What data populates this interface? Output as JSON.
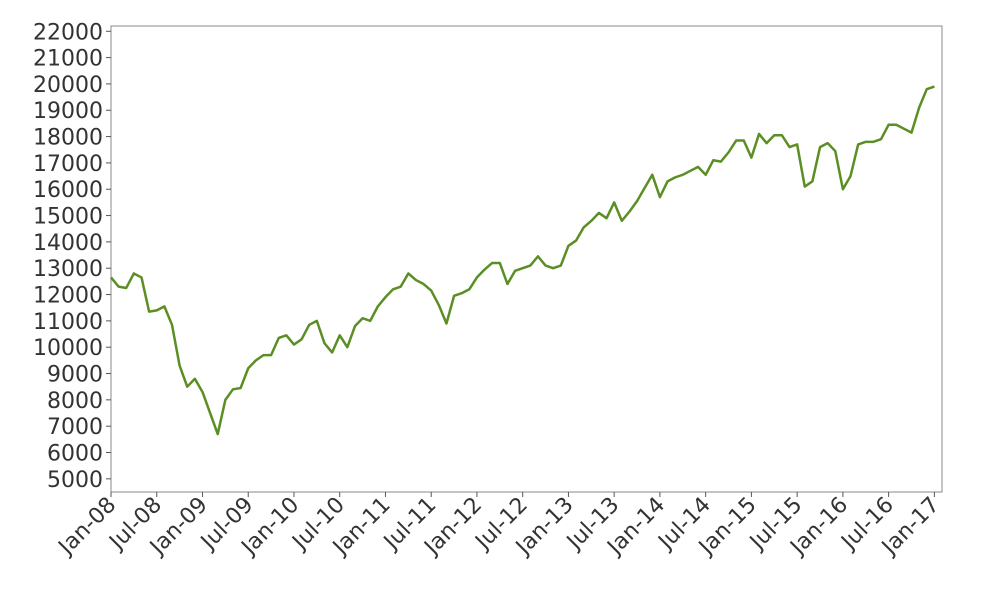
{
  "chart_data": {
    "type": "line",
    "color": "#5b8e23",
    "x": [
      "2008-01",
      "2008-02",
      "2008-03",
      "2008-04",
      "2008-05",
      "2008-06",
      "2008-07",
      "2008-08",
      "2008-09",
      "2008-10",
      "2008-11",
      "2008-12",
      "2009-01",
      "2009-02",
      "2009-03",
      "2009-04",
      "2009-05",
      "2009-06",
      "2009-07",
      "2009-08",
      "2009-09",
      "2009-10",
      "2009-11",
      "2009-12",
      "2010-01",
      "2010-02",
      "2010-03",
      "2010-04",
      "2010-05",
      "2010-06",
      "2010-07",
      "2010-08",
      "2010-09",
      "2010-10",
      "2010-11",
      "2010-12",
      "2011-01",
      "2011-02",
      "2011-03",
      "2011-04",
      "2011-05",
      "2011-06",
      "2011-07",
      "2011-08",
      "2011-09",
      "2011-10",
      "2011-11",
      "2011-12",
      "2012-01",
      "2012-02",
      "2012-03",
      "2012-04",
      "2012-05",
      "2012-06",
      "2012-07",
      "2012-08",
      "2012-09",
      "2012-10",
      "2012-11",
      "2012-12",
      "2013-01",
      "2013-02",
      "2013-03",
      "2013-04",
      "2013-05",
      "2013-06",
      "2013-07",
      "2013-08",
      "2013-09",
      "2013-10",
      "2013-11",
      "2013-12",
      "2014-01",
      "2014-02",
      "2014-03",
      "2014-04",
      "2014-05",
      "2014-06",
      "2014-07",
      "2014-08",
      "2014-09",
      "2014-10",
      "2014-11",
      "2014-12",
      "2015-01",
      "2015-02",
      "2015-03",
      "2015-04",
      "2015-05",
      "2015-06",
      "2015-07",
      "2015-08",
      "2015-09",
      "2015-10",
      "2015-11",
      "2015-12",
      "2016-01",
      "2016-02",
      "2016-03",
      "2016-04",
      "2016-05",
      "2016-06",
      "2016-07",
      "2016-08",
      "2016-09",
      "2016-10",
      "2016-11",
      "2016-12",
      "2017-01"
    ],
    "values": [
      12650,
      12300,
      12250,
      12800,
      12650,
      11350,
      11400,
      11550,
      10850,
      9300,
      8500,
      8800,
      8300,
      7500,
      6700,
      8000,
      8400,
      8450,
      9200,
      9500,
      9700,
      9700,
      10350,
      10450,
      10100,
      10300,
      10850,
      11000,
      10150,
      9800,
      10450,
      10000,
      10800,
      11100,
      11000,
      11550,
      11900,
      12200,
      12300,
      12800,
      12550,
      12400,
      12150,
      11600,
      10900,
      11950,
      12050,
      12200,
      12650,
      12950,
      13200,
      13200,
      12400,
      12900,
      13000,
      13100,
      13450,
      13100,
      13000,
      13100,
      13850,
      14050,
      14550,
      14800,
      15100,
      14900,
      15500,
      14800,
      15150,
      15550,
      16050,
      16550,
      15700,
      16300,
      16450,
      16550,
      16700,
      16850,
      16550,
      17100,
      17050,
      17400,
      17850,
      17850,
      17200,
      18100,
      17750,
      18050,
      18050,
      17600,
      17700,
      16100,
      16300,
      17600,
      17750,
      17450,
      16000,
      16500,
      17700,
      17800,
      17800,
      17900,
      18450,
      18450,
      18300,
      18150,
      19100,
      19800,
      19900
    ],
    "xlim": [
      "2008-01",
      "2017-02"
    ],
    "xticks": [
      {
        "value": "2008-01",
        "label": "Jan-08"
      },
      {
        "value": "2008-07",
        "label": "Jul-08"
      },
      {
        "value": "2009-01",
        "label": "Jan-09"
      },
      {
        "value": "2009-07",
        "label": "Jul-09"
      },
      {
        "value": "2010-01",
        "label": "Jan-10"
      },
      {
        "value": "2010-07",
        "label": "Jul-10"
      },
      {
        "value": "2011-01",
        "label": "Jan-11"
      },
      {
        "value": "2011-07",
        "label": "Jul-11"
      },
      {
        "value": "2012-01",
        "label": "Jan-12"
      },
      {
        "value": "2012-07",
        "label": "Jul-12"
      },
      {
        "value": "2013-01",
        "label": "Jan-13"
      },
      {
        "value": "2013-07",
        "label": "Jul-13"
      },
      {
        "value": "2014-01",
        "label": "Jan-14"
      },
      {
        "value": "2014-07",
        "label": "Jul-14"
      },
      {
        "value": "2015-01",
        "label": "Jan-15"
      },
      {
        "value": "2015-07",
        "label": "Jul-15"
      },
      {
        "value": "2016-01",
        "label": "Jan-16"
      },
      {
        "value": "2016-07",
        "label": "Jul-16"
      },
      {
        "value": "2017-01",
        "label": "Jan-17"
      }
    ],
    "ylim": [
      4500,
      22200
    ],
    "yticks": [
      5000,
      6000,
      7000,
      8000,
      9000,
      10000,
      11000,
      12000,
      13000,
      14000,
      15000,
      16000,
      17000,
      18000,
      19000,
      20000,
      21000,
      22000
    ]
  }
}
